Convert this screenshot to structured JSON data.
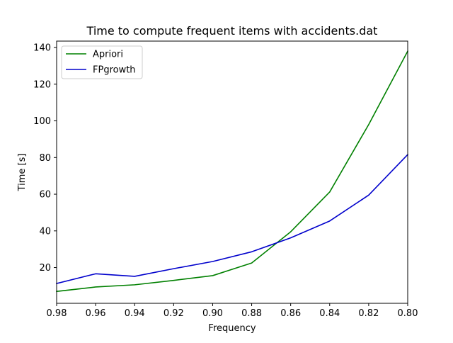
{
  "chart_data": {
    "type": "line",
    "title": "Time to compute frequent items with accidents.dat",
    "xlabel": "Frequency",
    "ylabel": "Time [s]",
    "x": [
      0.98,
      0.96,
      0.94,
      0.92,
      0.9,
      0.88,
      0.86,
      0.84,
      0.82,
      0.8
    ],
    "xlim": [
      0.98,
      0.8
    ],
    "ylim": [
      0.5,
      143.5
    ],
    "x_ticks": [
      "0.98",
      "0.96",
      "0.94",
      "0.92",
      "0.90",
      "0.88",
      "0.86",
      "0.84",
      "0.82",
      "0.80"
    ],
    "y_ticks": [
      "20",
      "40",
      "60",
      "80",
      "100",
      "120",
      "140"
    ],
    "grid": false,
    "legend_position": "upper-left",
    "series": [
      {
        "name": "Apriori",
        "color": "#008000",
        "values": [
          7.0,
          9.4,
          10.6,
          13.0,
          15.6,
          22.5,
          39.5,
          61.2,
          98.0,
          138.0
        ]
      },
      {
        "name": "FPgrowth",
        "color": "#0000cc",
        "values": [
          11.3,
          16.6,
          15.2,
          19.4,
          23.3,
          28.6,
          36.2,
          45.4,
          59.5,
          81.6
        ]
      }
    ]
  }
}
